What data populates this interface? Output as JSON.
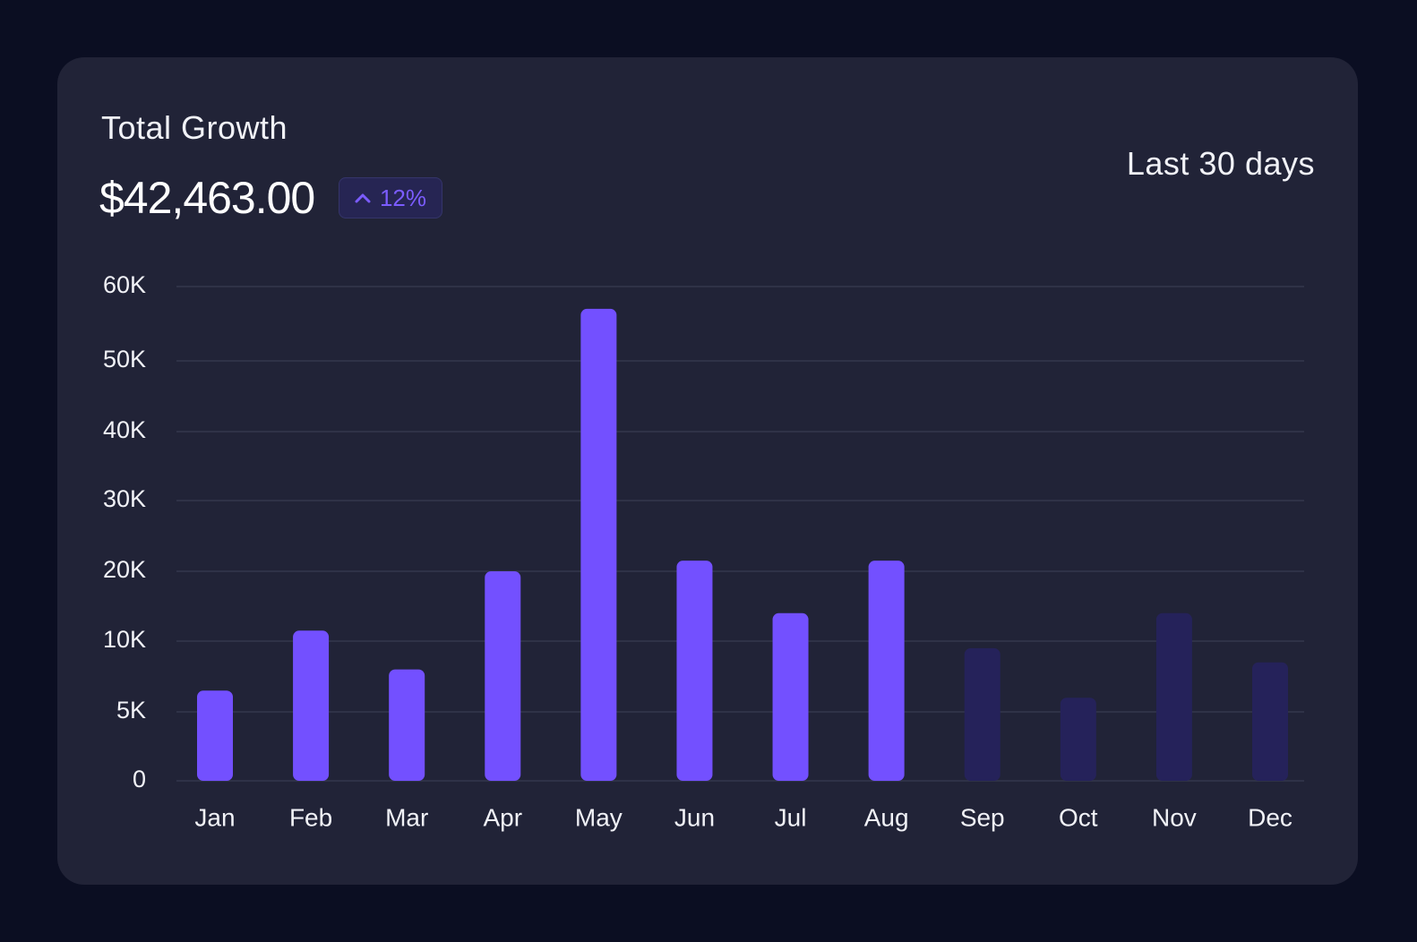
{
  "card": {
    "title": "Total Growth",
    "amount": "$42,463.00",
    "change": "12%",
    "change_icon": "chevron-up-icon",
    "range_label": "Last 30 days"
  },
  "colors": {
    "background": "#0b0e22",
    "card": "#212337",
    "bar_active": "#7350ff",
    "bar_muted": "#25225a",
    "gridline": "#34374d",
    "text": "#f1f2f7",
    "accent": "#7b5cff"
  },
  "chart_data": {
    "type": "bar",
    "categories": [
      "Jan",
      "Feb",
      "Mar",
      "Apr",
      "May",
      "Jun",
      "Jul",
      "Aug",
      "Sep",
      "Oct",
      "Nov",
      "Dec"
    ],
    "values": [
      6500,
      11500,
      8000,
      20000,
      57000,
      21500,
      14000,
      21500,
      9500,
      6000,
      14000,
      8500
    ],
    "highlighted": [
      true,
      true,
      true,
      true,
      true,
      true,
      true,
      true,
      false,
      false,
      false,
      false
    ],
    "y_ticks": [
      {
        "label": "0",
        "value": 0
      },
      {
        "label": "5K",
        "value": 5000
      },
      {
        "label": "10K",
        "value": 10000
      },
      {
        "label": "20K",
        "value": 20000
      },
      {
        "label": "30K",
        "value": 30000
      },
      {
        "label": "40K",
        "value": 40000
      },
      {
        "label": "50K",
        "value": 50000
      },
      {
        "label": "60K",
        "value": 60000
      }
    ],
    "grid": true,
    "title": "",
    "xlabel": "",
    "ylabel": ""
  }
}
